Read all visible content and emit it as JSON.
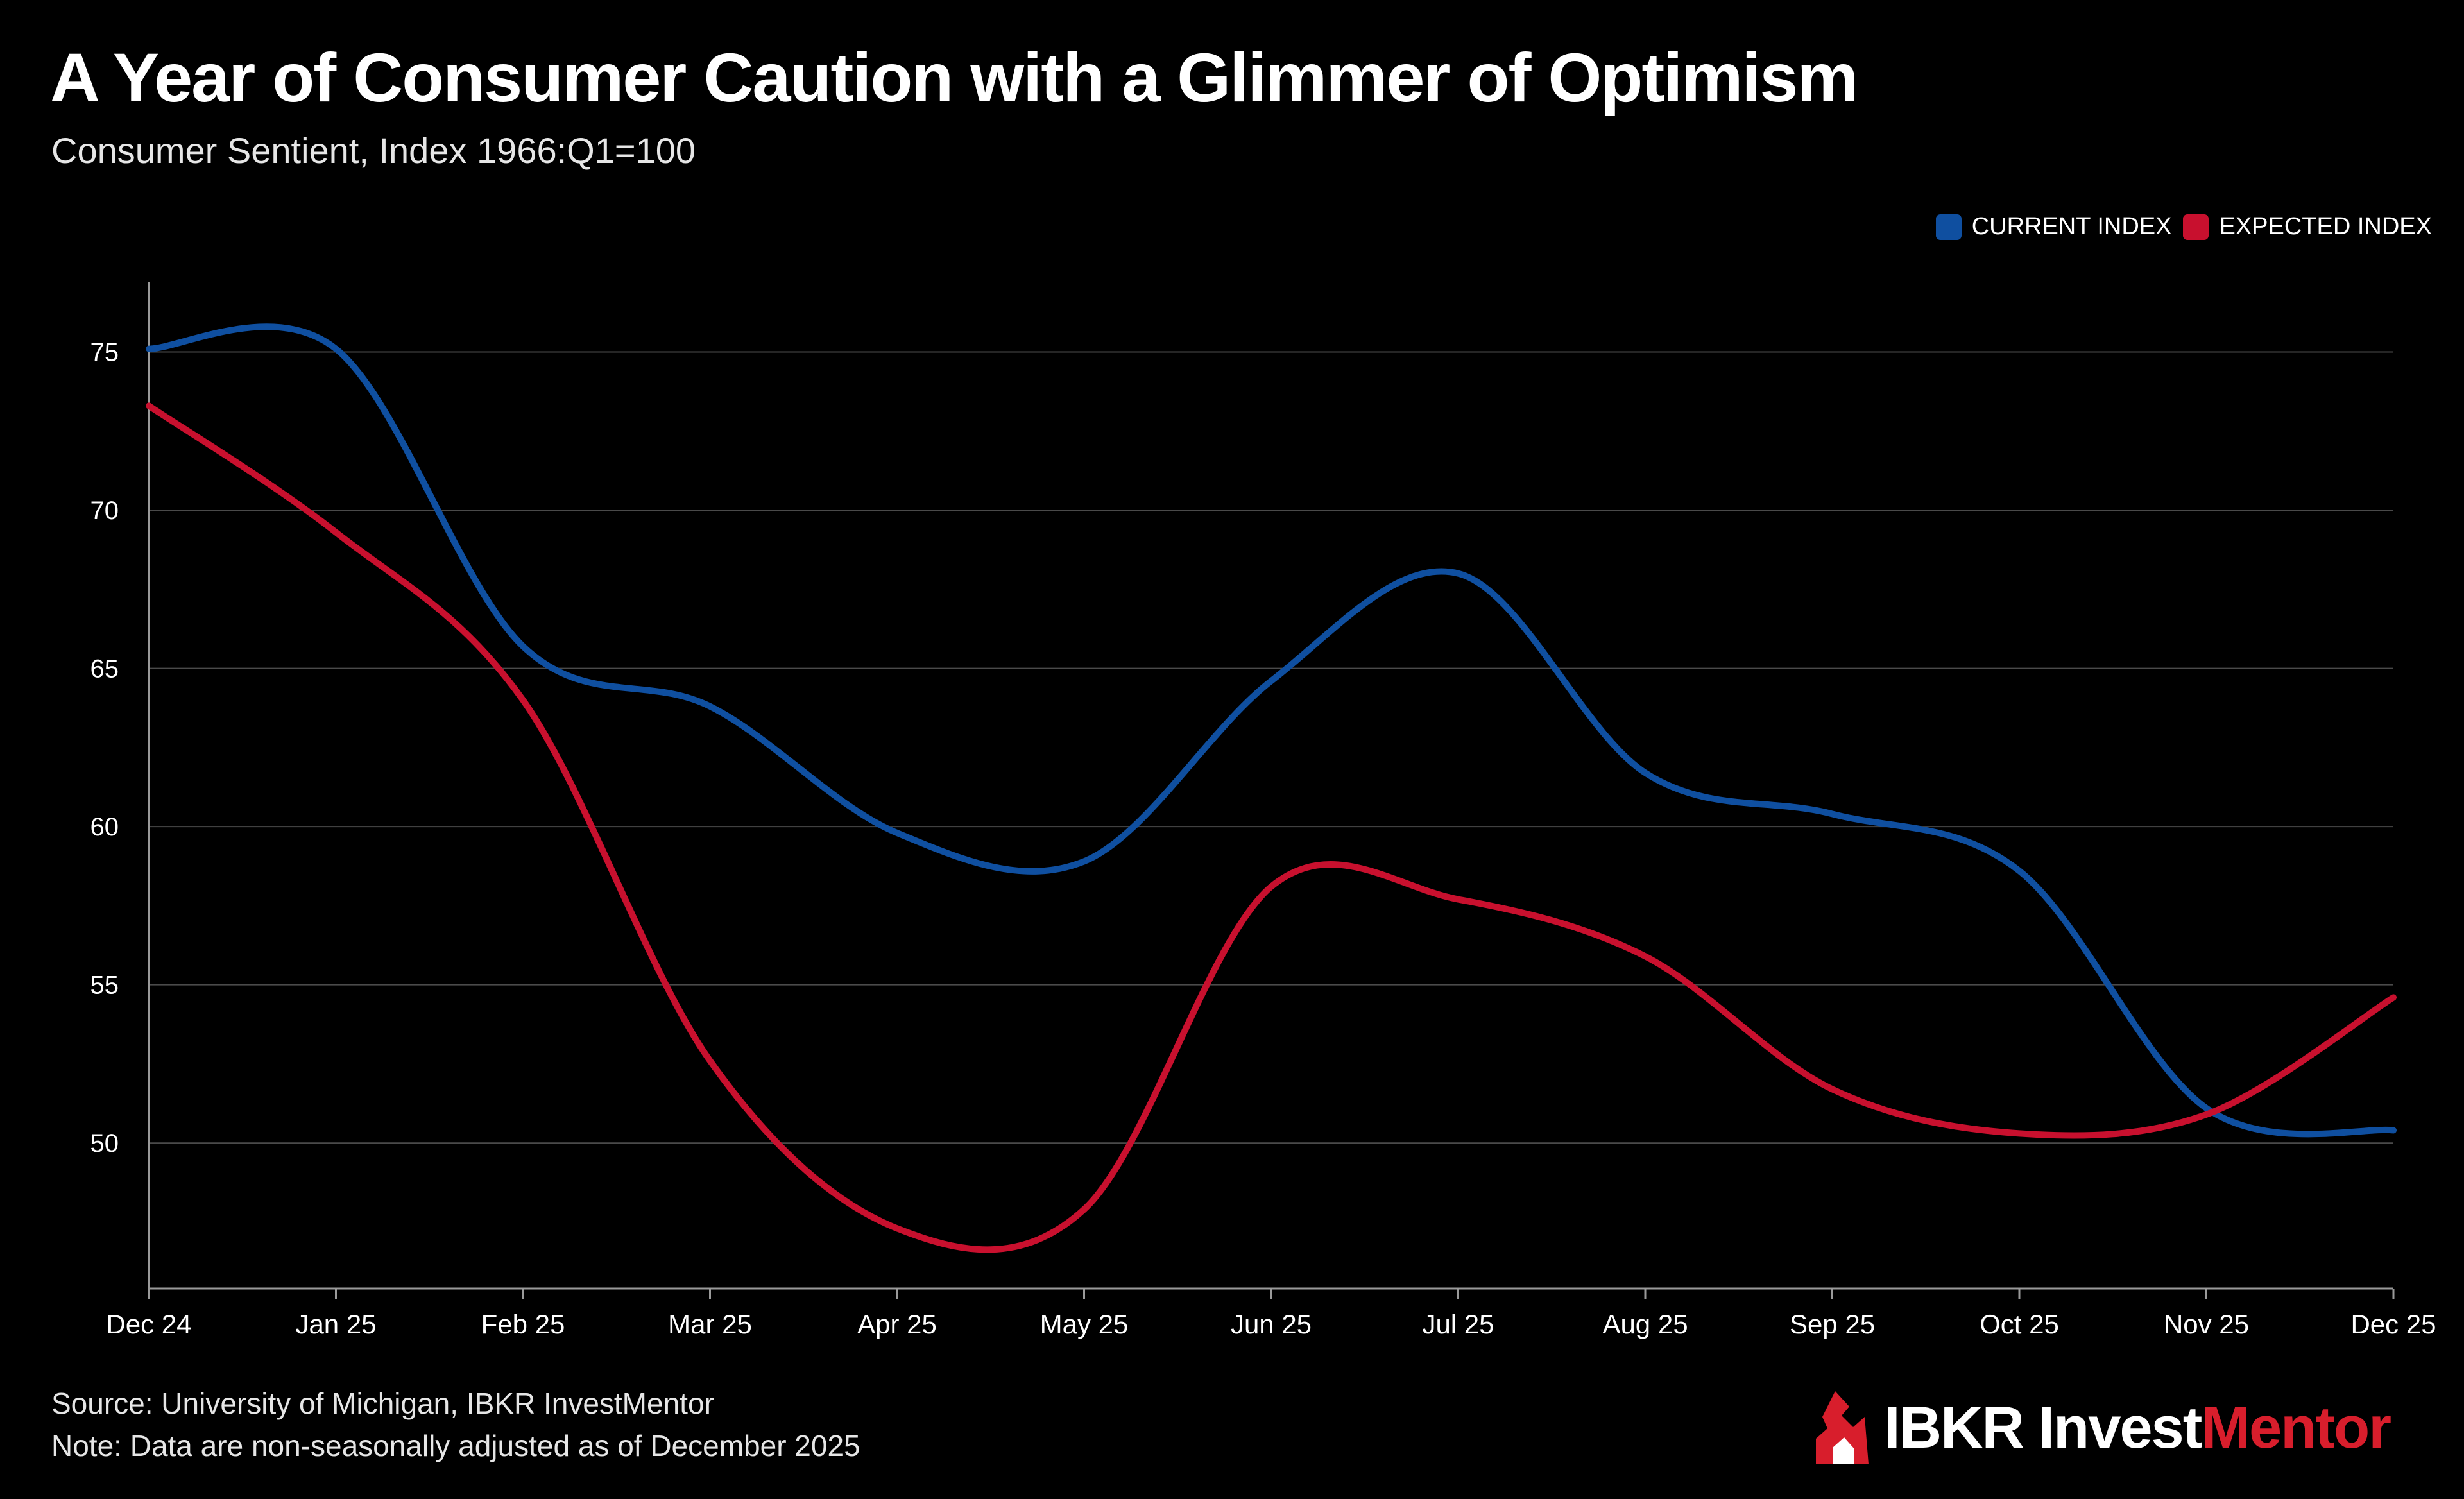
{
  "header": {
    "title": "A Year of Consumer Caution with a Glimmer of Optimism",
    "subtitle": "Consumer Sentient, Index 1966:Q1=100"
  },
  "footer": {
    "source": "Source: University of Michigan, IBKR InvestMentor",
    "note": "Note: Data are non-seasonally adjusted as of December 2025"
  },
  "logo": {
    "icon": "ibkr-flame-icon",
    "brand": "IBKR Invest",
    "accent": "Mentor"
  },
  "colors": {
    "background": "#000000",
    "current": "#0f4fa0",
    "expected": "#c8102e",
    "grid": "#4a4a4a",
    "axis": "#9a9a9a",
    "text": "#ffffff",
    "logo_accent": "#d81e2c"
  },
  "chart_data": {
    "type": "line",
    "title": "A Year of Consumer Caution with a Glimmer of Optimism",
    "subtitle": "Consumer Sentient, Index 1966:Q1=100",
    "xlabel": "",
    "ylabel": "",
    "categories": [
      "Dec 24",
      "Jan 25",
      "Feb 25",
      "Mar 25",
      "Apr 25",
      "May 25",
      "Jun 25",
      "Jul 25",
      "Aug 25",
      "Sep 25",
      "Oct 25",
      "Nov 25",
      "Dec 25"
    ],
    "series": [
      {
        "name": "CURRENT INDEX",
        "color": "#0f4fa0",
        "values": [
          75.1,
          75.1,
          65.7,
          63.8,
          59.8,
          58.9,
          64.6,
          68.0,
          61.7,
          60.4,
          58.6,
          51.1,
          50.4
        ]
      },
      {
        "name": "EXPECTED INDEX",
        "color": "#c8102e",
        "values": [
          73.3,
          69.3,
          64.0,
          52.6,
          47.3,
          47.9,
          58.1,
          57.7,
          55.9,
          51.7,
          50.3,
          50.9,
          54.6
        ]
      }
    ],
    "yticks": [
      50,
      55,
      60,
      65,
      70,
      75
    ],
    "ylim": [
      45.4,
      77.1
    ],
    "grid": true,
    "legend": "top-right"
  }
}
